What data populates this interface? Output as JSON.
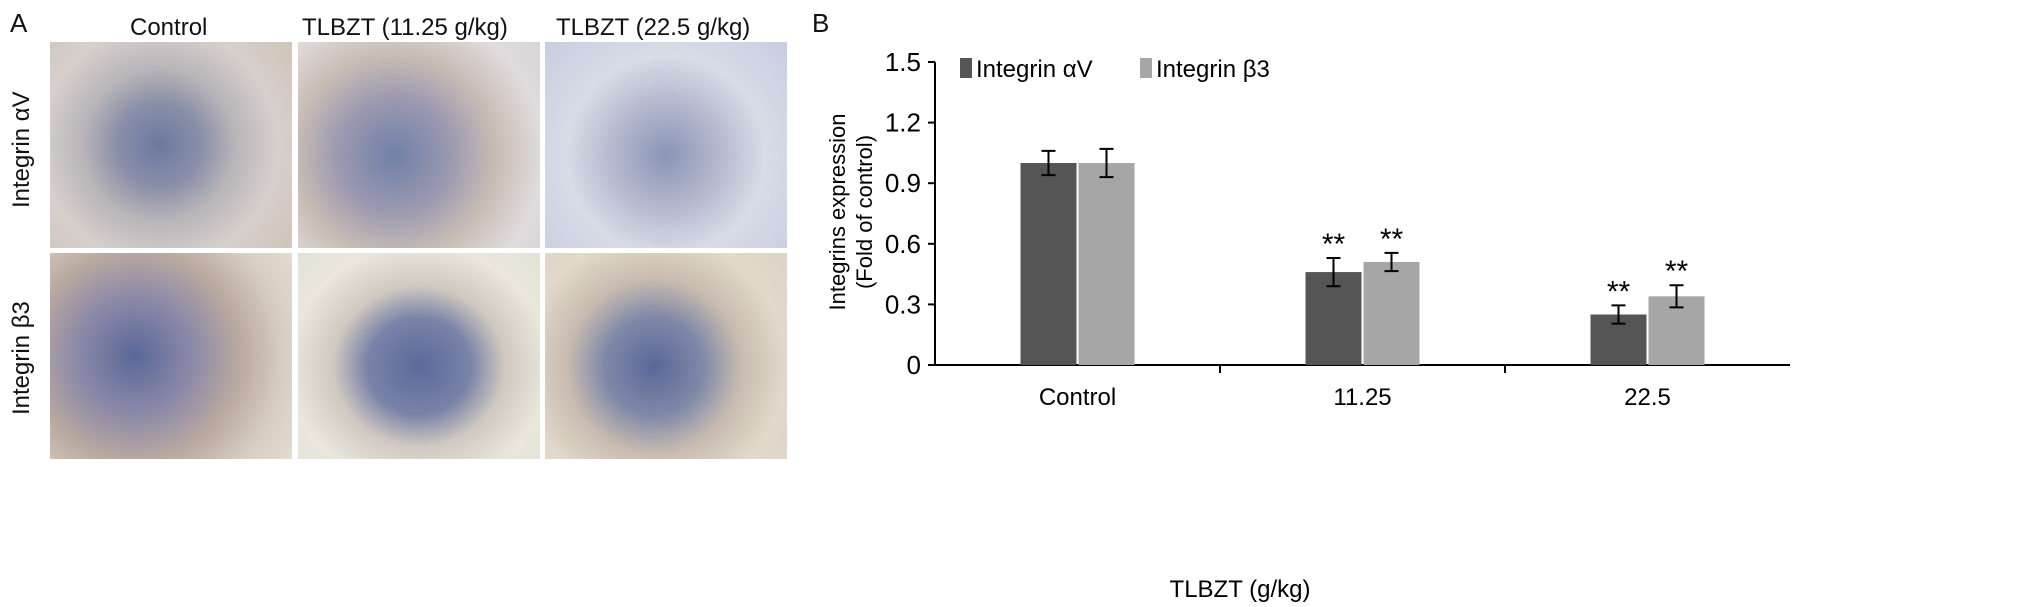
{
  "panel_a": {
    "label": "A",
    "columns": [
      "Control",
      "TLBZT (11.25 g/kg)",
      "TLBZT (22.5 g/kg)"
    ],
    "rows": [
      "Integrin αV",
      "Integrin β3"
    ]
  },
  "chart_data": {
    "panel_label": "B",
    "type": "bar",
    "categories": [
      "Control",
      "11.25",
      "22.5"
    ],
    "xlabel": "TLBZT (g/kg)",
    "ylabel": "Integrins expression (Fold of control)",
    "ylabel_lines": [
      "Integrins expression",
      "(Fold of control)"
    ],
    "ylim": [
      0,
      1.5
    ],
    "yticks": [
      "0",
      "0.3",
      "0.6",
      "0.9",
      "1.2",
      "1.5"
    ],
    "legend_position": "top",
    "grid": false,
    "series": [
      {
        "name": "Integrin αV",
        "color": "#555555",
        "values": [
          1.0,
          0.46,
          0.25
        ],
        "errors": [
          0.06,
          0.07,
          0.045
        ],
        "annotations": [
          "",
          "**",
          "**"
        ]
      },
      {
        "name": "Integrin β3",
        "color": "#a6a6a6",
        "values": [
          1.0,
          0.51,
          0.34
        ],
        "errors": [
          0.07,
          0.045,
          0.055
        ],
        "annotations": [
          "",
          "**",
          "**"
        ]
      }
    ]
  }
}
